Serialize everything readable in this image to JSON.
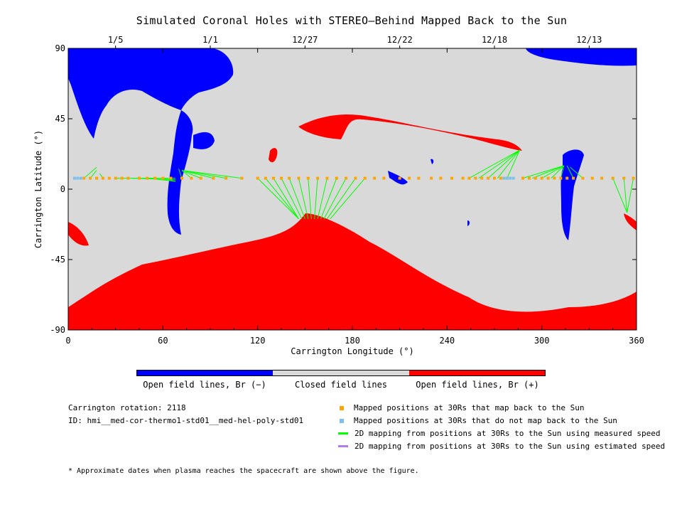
{
  "chart_data": {
    "type": "scatter",
    "title": "Simulated Coronal Holes with STEREO–Behind Mapped Back to the Sun",
    "xlabel": "Carrington Longitude (°)",
    "ylabel": "Carrington Latitude (°)",
    "xlim": [
      0,
      360
    ],
    "ylim": [
      -90,
      90
    ],
    "xticks": [
      0,
      60,
      120,
      180,
      240,
      300,
      360
    ],
    "yticks": [
      -90,
      -45,
      0,
      45,
      90
    ],
    "top_axis_dates": [
      {
        "label": "1/5",
        "lon": 30
      },
      {
        "label": "1/1",
        "lon": 90
      },
      {
        "label": "12/27",
        "lon": 150
      },
      {
        "label": "12/22",
        "lon": 210
      },
      {
        "label": "12/18",
        "lon": 270
      },
      {
        "label": "12/13",
        "lon": 330
      }
    ],
    "series": [
      {
        "name": "Mapped positions at 30Rs that map back to the Sun",
        "color": "#FFA500",
        "lon": [
          10,
          14,
          18,
          22,
          26,
          30,
          34,
          38,
          45,
          50,
          55,
          60,
          65,
          72,
          78,
          84,
          92,
          100,
          110,
          120,
          125,
          130,
          135,
          140,
          146,
          152,
          158,
          164,
          170,
          176,
          182,
          188,
          194,
          200,
          210,
          216,
          222,
          230,
          236,
          243,
          250,
          254,
          258,
          262,
          266,
          270,
          274,
          278,
          288,
          292,
          296,
          300,
          304,
          308,
          312,
          316,
          320,
          326,
          332,
          338,
          345,
          352,
          358
        ],
        "lat": [
          7,
          7,
          7,
          7,
          7,
          7,
          7,
          7,
          7,
          7,
          7,
          7,
          7,
          7,
          7,
          7,
          7,
          7,
          7,
          7,
          7,
          7,
          7,
          7,
          7,
          7,
          7,
          7,
          7,
          7,
          7,
          7,
          7,
          7,
          7,
          7,
          7,
          7,
          7,
          7,
          7,
          7,
          7,
          7,
          7,
          7,
          7,
          7,
          7,
          7,
          7,
          7,
          7,
          7,
          7,
          7,
          7,
          7,
          7,
          7,
          7,
          7,
          7
        ]
      },
      {
        "name": "Mapped positions at 30Rs that do not map back to the Sun",
        "color": "#7EC0EE",
        "lon": [
          4,
          6,
          8,
          276,
          278,
          280,
          282
        ],
        "lat": [
          7,
          7,
          7,
          7,
          7,
          7,
          7
        ]
      },
      {
        "name": "2D mapping from positions at 30Rs to the Sun using measured speed",
        "color": "#00FF00",
        "segments": [
          [
            10,
            7,
            18,
            14
          ],
          [
            14,
            7,
            18,
            12
          ],
          [
            22,
            7,
            20,
            10
          ],
          [
            30,
            7,
            68,
            7
          ],
          [
            40,
            7,
            68,
            6
          ],
          [
            50,
            7,
            68,
            5
          ],
          [
            60,
            7,
            68,
            5
          ],
          [
            72,
            7,
            70,
            13
          ],
          [
            78,
            7,
            72,
            12
          ],
          [
            84,
            7,
            74,
            11
          ],
          [
            92,
            7,
            72,
            12
          ],
          [
            100,
            7,
            72,
            12
          ],
          [
            110,
            7,
            72,
            12
          ],
          [
            120,
            7,
            146,
            -19
          ],
          [
            125,
            7,
            146,
            -19
          ],
          [
            130,
            7,
            146,
            -19
          ],
          [
            135,
            7,
            148,
            -19
          ],
          [
            140,
            7,
            150,
            -19
          ],
          [
            146,
            7,
            152,
            -19
          ],
          [
            152,
            7,
            154,
            -19
          ],
          [
            158,
            7,
            156,
            -19
          ],
          [
            164,
            7,
            158,
            -19
          ],
          [
            170,
            7,
            160,
            -19
          ],
          [
            176,
            7,
            162,
            -19
          ],
          [
            182,
            7,
            164,
            -19
          ],
          [
            188,
            7,
            166,
            -19
          ],
          [
            254,
            7,
            286,
            25
          ],
          [
            260,
            7,
            286,
            25
          ],
          [
            266,
            7,
            286,
            25
          ],
          [
            272,
            7,
            286,
            25
          ],
          [
            278,
            7,
            286,
            25
          ],
          [
            288,
            7,
            314,
            15
          ],
          [
            294,
            7,
            314,
            15
          ],
          [
            300,
            7,
            314,
            15
          ],
          [
            306,
            7,
            314,
            15
          ],
          [
            312,
            7,
            314,
            15
          ],
          [
            320,
            7,
            316,
            15
          ],
          [
            326,
            7,
            318,
            14
          ],
          [
            345,
            7,
            354,
            -15
          ],
          [
            352,
            7,
            354,
            -15
          ],
          [
            358,
            7,
            354,
            -15
          ]
        ]
      },
      {
        "name": "2D mapping from positions at 30Rs to the Sun using estimated speed",
        "color": "#B07EE8",
        "segments": []
      }
    ],
    "regions": [
      {
        "name": "Open field lines, Br (−)",
        "color": "#0000FF"
      },
      {
        "name": "Closed field lines",
        "color": "#D9D9D9"
      },
      {
        "name": "Open field lines, Br (+)",
        "color": "#FF0000"
      }
    ]
  },
  "info": {
    "rotation": "Carrington rotation: 2118",
    "id": "ID: hmi__med-cor-thermo1-std01__med-hel-poly-std01"
  },
  "colorbar_labels": [
    "Open field lines, Br (−)",
    "Closed field lines",
    "Open field lines, Br (+)"
  ],
  "footnote": "* Approximate dates when plasma reaches the spacecraft are shown above the figure."
}
